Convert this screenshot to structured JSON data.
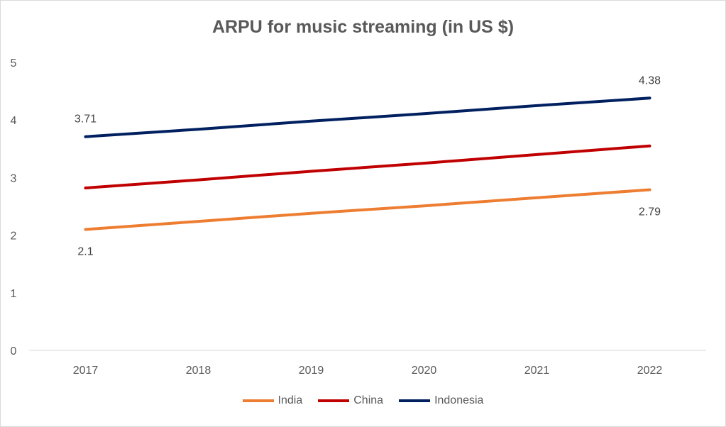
{
  "chart_data": {
    "type": "line",
    "title": "ARPU for music streaming (in US $)",
    "xlabel": "",
    "ylabel": "",
    "categories": [
      "2017",
      "2018",
      "2019",
      "2020",
      "2021",
      "2022"
    ],
    "ylim": [
      0,
      5
    ],
    "yticks": [
      "0",
      "1",
      "2",
      "3",
      "4",
      "5"
    ],
    "grid": false,
    "legend_position": "bottom",
    "series": [
      {
        "name": "India",
        "color": "#ED7D31",
        "values": [
          2.1,
          2.24,
          2.38,
          2.51,
          2.65,
          2.79
        ]
      },
      {
        "name": "China",
        "color": "#C00000",
        "values": [
          2.82,
          2.96,
          3.11,
          3.25,
          3.4,
          3.55
        ]
      },
      {
        "name": "Indonesia",
        "color": "#002060",
        "values": [
          3.71,
          3.84,
          3.98,
          4.11,
          4.25,
          4.38
        ]
      }
    ],
    "data_labels": [
      {
        "series": "Indonesia",
        "index": 0,
        "text": "3.71",
        "position": "above"
      },
      {
        "series": "Indonesia",
        "index": 5,
        "text": "4.38",
        "position": "above"
      },
      {
        "series": "India",
        "index": 0,
        "text": "2.1",
        "position": "below"
      },
      {
        "series": "India",
        "index": 5,
        "text": "2.79",
        "position": "below"
      }
    ]
  }
}
